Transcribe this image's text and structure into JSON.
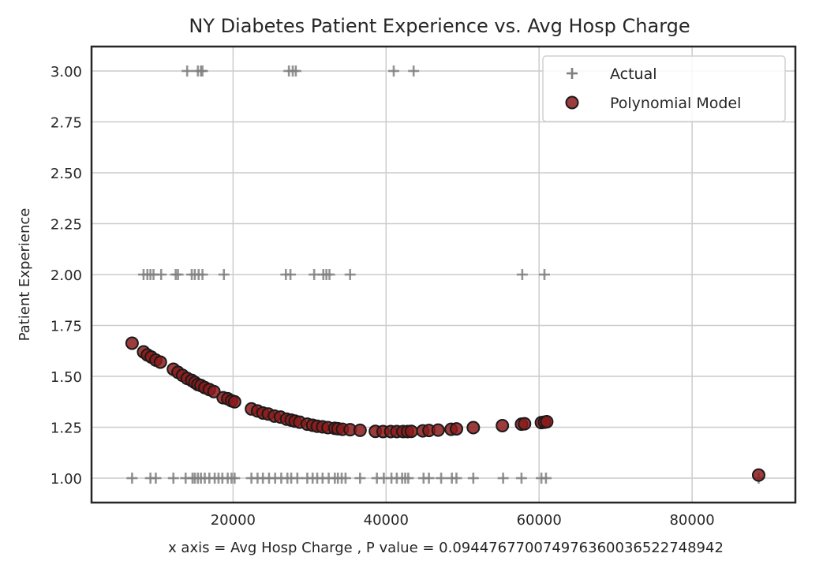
{
  "chart_data": {
    "type": "scatter",
    "title": "NY Diabetes Patient Experience vs. Avg Hosp Charge",
    "xlabel": "x axis = Avg Hosp Charge , P value = 0.09447677007497636003652274894​2",
    "ylabel": "Patient Experience",
    "xlim": [
      1500,
      93500
    ],
    "ylim": [
      0.88,
      3.12
    ],
    "xticks": [
      20000,
      40000,
      60000,
      80000
    ],
    "xtick_labels": [
      "20000",
      "40000",
      "60000",
      "80000"
    ],
    "yticks": [
      1.0,
      1.25,
      1.5,
      1.75,
      2.0,
      2.25,
      2.5,
      2.75,
      3.0
    ],
    "ytick_labels": [
      "1.00",
      "1.25",
      "1.50",
      "1.75",
      "2.00",
      "2.25",
      "2.50",
      "2.75",
      "3.00"
    ],
    "grid": true,
    "legend_position": "top-right",
    "series": [
      {
        "name": "Actual",
        "marker": "plus",
        "color": "#808080",
        "points": [
          [
            14000,
            3
          ],
          [
            15400,
            3
          ],
          [
            15800,
            3
          ],
          [
            16000,
            3
          ],
          [
            27300,
            3
          ],
          [
            27800,
            3
          ],
          [
            28200,
            3
          ],
          [
            41000,
            3
          ],
          [
            43600,
            3
          ],
          [
            8300,
            2
          ],
          [
            8800,
            2
          ],
          [
            9200,
            2
          ],
          [
            9600,
            2
          ],
          [
            10600,
            2
          ],
          [
            12500,
            2
          ],
          [
            12800,
            2
          ],
          [
            14600,
            2
          ],
          [
            15000,
            2
          ],
          [
            15500,
            2
          ],
          [
            16000,
            2
          ],
          [
            18800,
            2
          ],
          [
            26900,
            2
          ],
          [
            27500,
            2
          ],
          [
            30600,
            2
          ],
          [
            31800,
            2
          ],
          [
            32200,
            2
          ],
          [
            32600,
            2
          ],
          [
            35300,
            2
          ],
          [
            57800,
            2
          ],
          [
            60700,
            2
          ],
          [
            6800,
            1
          ],
          [
            9200,
            1
          ],
          [
            9900,
            1
          ],
          [
            12200,
            1
          ],
          [
            13800,
            1
          ],
          [
            14700,
            1
          ],
          [
            15000,
            1
          ],
          [
            15400,
            1
          ],
          [
            15800,
            1
          ],
          [
            16300,
            1
          ],
          [
            16900,
            1
          ],
          [
            17600,
            1
          ],
          [
            18100,
            1
          ],
          [
            18600,
            1
          ],
          [
            19300,
            1
          ],
          [
            19800,
            1
          ],
          [
            20200,
            1
          ],
          [
            22400,
            1
          ],
          [
            23200,
            1
          ],
          [
            23900,
            1
          ],
          [
            24700,
            1
          ],
          [
            25500,
            1
          ],
          [
            26300,
            1
          ],
          [
            27100,
            1
          ],
          [
            27600,
            1
          ],
          [
            28400,
            1
          ],
          [
            29700,
            1
          ],
          [
            30400,
            1
          ],
          [
            31000,
            1
          ],
          [
            31700,
            1
          ],
          [
            32500,
            1
          ],
          [
            33300,
            1
          ],
          [
            33700,
            1
          ],
          [
            34200,
            1
          ],
          [
            34700,
            1
          ],
          [
            36600,
            1
          ],
          [
            38800,
            1
          ],
          [
            39700,
            1
          ],
          [
            40700,
            1
          ],
          [
            41400,
            1
          ],
          [
            42100,
            1
          ],
          [
            42500,
            1
          ],
          [
            42900,
            1
          ],
          [
            44900,
            1
          ],
          [
            45600,
            1
          ],
          [
            47200,
            1
          ],
          [
            48600,
            1
          ],
          [
            49200,
            1
          ],
          [
            51400,
            1
          ],
          [
            55300,
            1
          ],
          [
            57700,
            1
          ],
          [
            60300,
            1
          ],
          [
            60900,
            1
          ],
          [
            88700,
            1
          ]
        ]
      },
      {
        "name": "Polynomial Model",
        "marker": "circle",
        "color": "#8b1a1a",
        "edgecolor": "#1a1a1a",
        "points": [
          [
            6800,
            1.663
          ],
          [
            8300,
            1.62
          ],
          [
            8800,
            1.605
          ],
          [
            9300,
            1.595
          ],
          [
            9900,
            1.58
          ],
          [
            10500,
            1.57
          ],
          [
            12200,
            1.535
          ],
          [
            12800,
            1.52
          ],
          [
            13400,
            1.505
          ],
          [
            14000,
            1.49
          ],
          [
            14600,
            1.48
          ],
          [
            15000,
            1.47
          ],
          [
            15400,
            1.46
          ],
          [
            15800,
            1.455
          ],
          [
            16300,
            1.445
          ],
          [
            16900,
            1.435
          ],
          [
            17500,
            1.425
          ],
          [
            18700,
            1.395
          ],
          [
            19300,
            1.39
          ],
          [
            19800,
            1.38
          ],
          [
            20200,
            1.375
          ],
          [
            22400,
            1.34
          ],
          [
            23200,
            1.33
          ],
          [
            23900,
            1.32
          ],
          [
            24600,
            1.315
          ],
          [
            25400,
            1.305
          ],
          [
            26200,
            1.3
          ],
          [
            27000,
            1.29
          ],
          [
            27600,
            1.285
          ],
          [
            28100,
            1.28
          ],
          [
            28700,
            1.275
          ],
          [
            29700,
            1.265
          ],
          [
            30400,
            1.26
          ],
          [
            31000,
            1.255
          ],
          [
            31700,
            1.252
          ],
          [
            32400,
            1.248
          ],
          [
            33300,
            1.245
          ],
          [
            33700,
            1.243
          ],
          [
            34300,
            1.24
          ],
          [
            35300,
            1.238
          ],
          [
            36600,
            1.235
          ],
          [
            38600,
            1.23
          ],
          [
            39600,
            1.229
          ],
          [
            40600,
            1.229
          ],
          [
            41400,
            1.229
          ],
          [
            42200,
            1.229
          ],
          [
            42800,
            1.229
          ],
          [
            43300,
            1.23
          ],
          [
            44800,
            1.232
          ],
          [
            45600,
            1.234
          ],
          [
            46800,
            1.236
          ],
          [
            48500,
            1.24
          ],
          [
            49200,
            1.242
          ],
          [
            51400,
            1.248
          ],
          [
            55200,
            1.258
          ],
          [
            57700,
            1.265
          ],
          [
            58100,
            1.267
          ],
          [
            60300,
            1.273
          ],
          [
            60700,
            1.275
          ],
          [
            61000,
            1.277
          ],
          [
            88700,
            1.015
          ]
        ]
      }
    ]
  }
}
